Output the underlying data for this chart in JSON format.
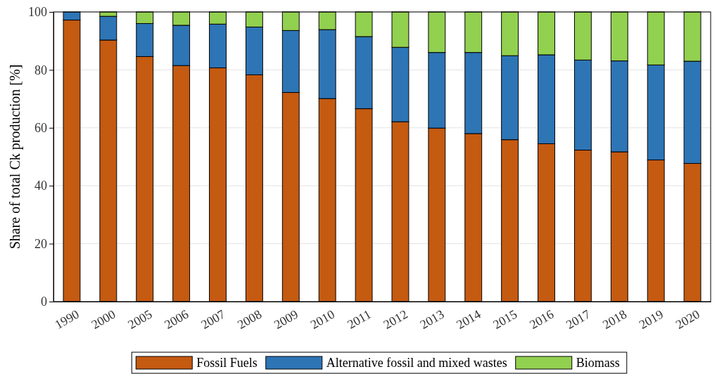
{
  "chart_data": {
    "type": "bar",
    "stacked": true,
    "ylabel": "Share of total Ck production [%]",
    "categories": [
      "1990",
      "2000",
      "2005",
      "2006",
      "2007",
      "2008",
      "2009",
      "2010",
      "2011",
      "2012",
      "2013",
      "2014",
      "2015",
      "2016",
      "2017",
      "2018",
      "2019",
      "2020"
    ],
    "series": [
      {
        "name": "Fossil Fuels",
        "color": "#c55a11",
        "values": [
          97.2,
          90.3,
          84.6,
          81.5,
          80.7,
          78.3,
          72.2,
          70.1,
          66.6,
          62.1,
          59.9,
          58,
          55.9,
          54.5,
          52.3,
          51.7,
          48.9,
          47.7
        ]
      },
      {
        "name": "Alternative fossil and mixed wastes",
        "color": "#2e75b6",
        "values": [
          2.8,
          8.2,
          11.4,
          13.9,
          15.1,
          16.5,
          21.4,
          23.8,
          24.9,
          25.7,
          26.1,
          28,
          29,
          30.7,
          31.1,
          31.4,
          32.8,
          35.3
        ]
      },
      {
        "name": "Biomass",
        "color": "#92d050",
        "values": [
          null,
          1.5,
          4,
          4.6,
          4.2,
          5.2,
          6.4,
          6.1,
          8.5,
          12.2,
          14,
          14,
          15.1,
          14.8,
          16.6,
          16.9,
          18.3,
          17
        ]
      }
    ],
    "ylim": [
      0,
      100
    ],
    "yticks": [
      0,
      20,
      40,
      60,
      80,
      100
    ],
    "grid": "y",
    "legend": "bottom"
  }
}
